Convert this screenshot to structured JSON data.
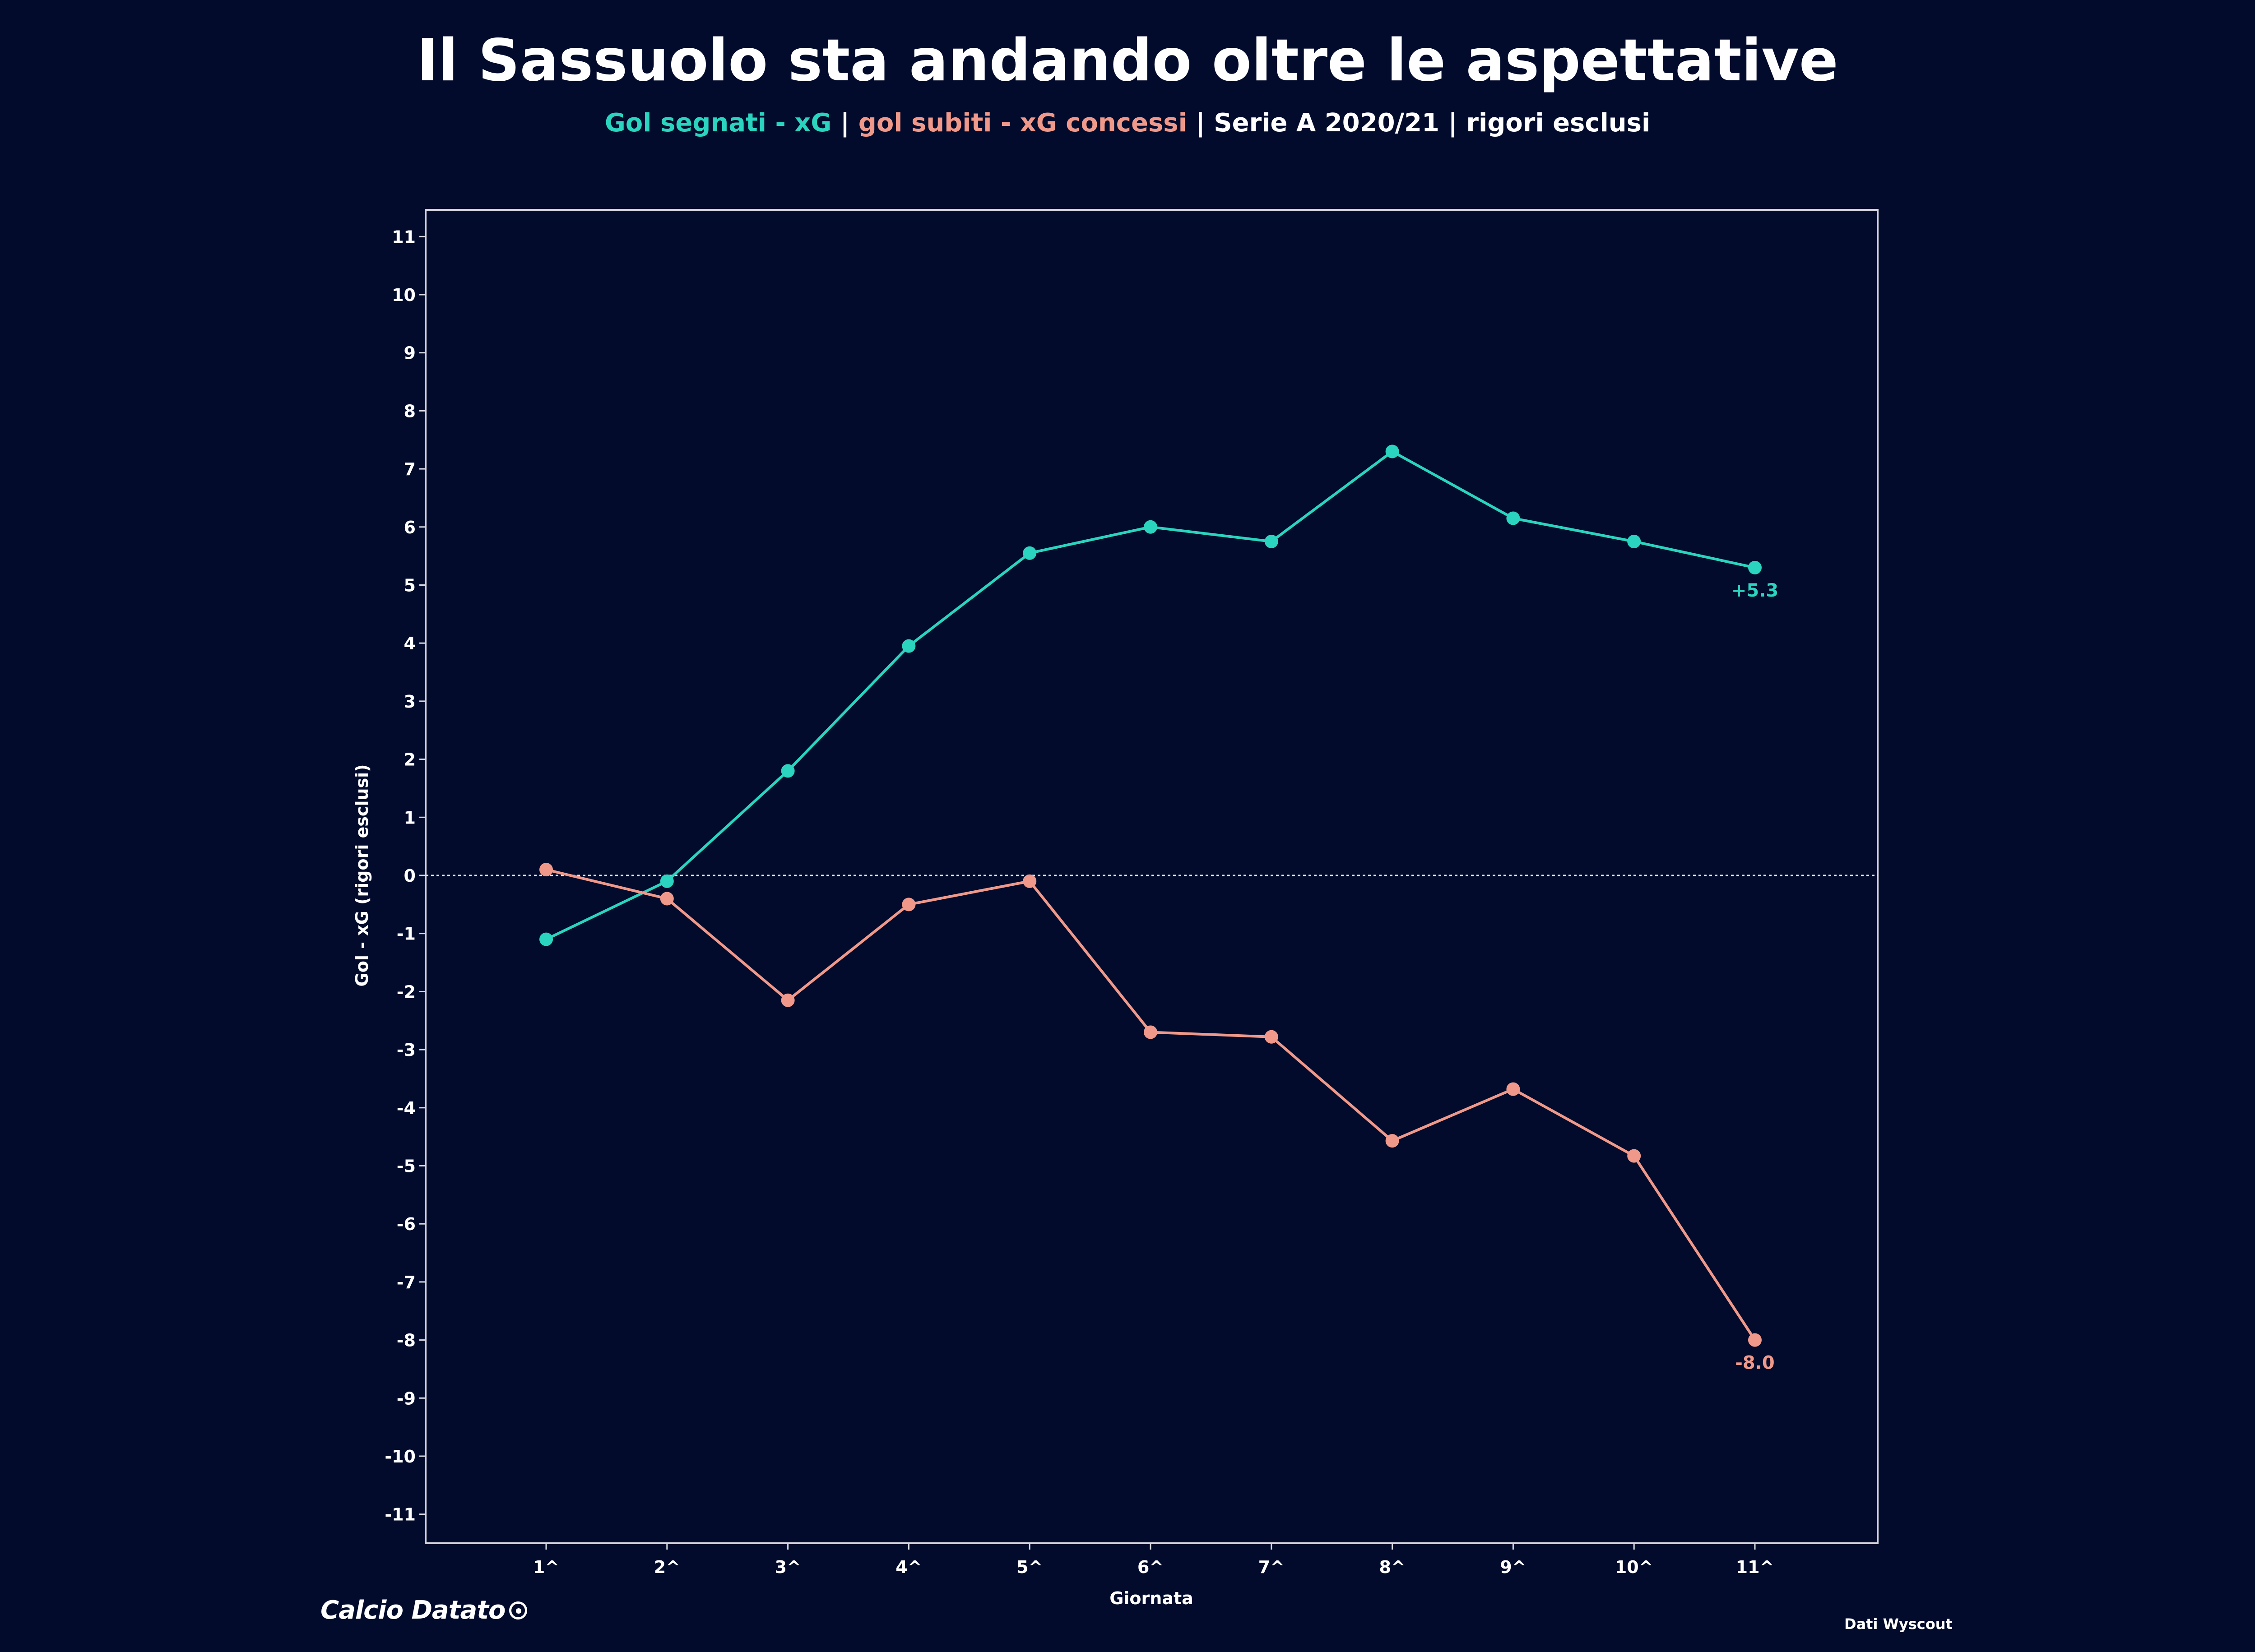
{
  "header": {
    "title": "Il Sassuolo sta andando oltre le aspettative",
    "subtitle_part1": "Gol segnati - xG",
    "separator1": " | ",
    "subtitle_part2": "gol subiti - xG concessi",
    "subtitle_part3": " | Serie A 2020/21 | rigori esclusi"
  },
  "footer": {
    "logo_text": "Calcio Datato",
    "source": "Dati Wyscout"
  },
  "colors": {
    "background": "#020b2c",
    "teal": "#2ad4be",
    "salmon": "#f0998a",
    "axis": "#d8d8e0"
  },
  "chart_data": {
    "type": "line",
    "xlabel": "Giornata",
    "ylabel": "Gol - xG (rigori esclusi)",
    "categories": [
      "1^",
      "2^",
      "3^",
      "4^",
      "5^",
      "6^",
      "7^",
      "8^",
      "9^",
      "10^",
      "11^"
    ],
    "ylim": [
      -11.5,
      11.5
    ],
    "yticks": [
      11,
      10,
      9,
      8,
      7,
      6,
      5,
      4,
      3,
      2,
      1,
      0,
      -1,
      -2,
      -3,
      -4,
      -5,
      -6,
      -7,
      -8,
      -9,
      -10,
      -11
    ],
    "grid": false,
    "zero_line": true,
    "series": [
      {
        "color": "#2ad4be",
        "values": [
          -1.1,
          -0.1,
          1.8,
          3.95,
          5.55,
          6.0,
          5.75,
          7.3,
          6.15,
          5.75,
          5.3
        ],
        "end_label": "+5.3"
      },
      {
        "color": "#f0998a",
        "values": [
          0.1,
          -0.4,
          -2.15,
          -0.5,
          -0.1,
          -2.7,
          -2.78,
          -4.57,
          -3.68,
          -4.83,
          -8.0
        ],
        "end_label": "-8.0"
      }
    ]
  }
}
